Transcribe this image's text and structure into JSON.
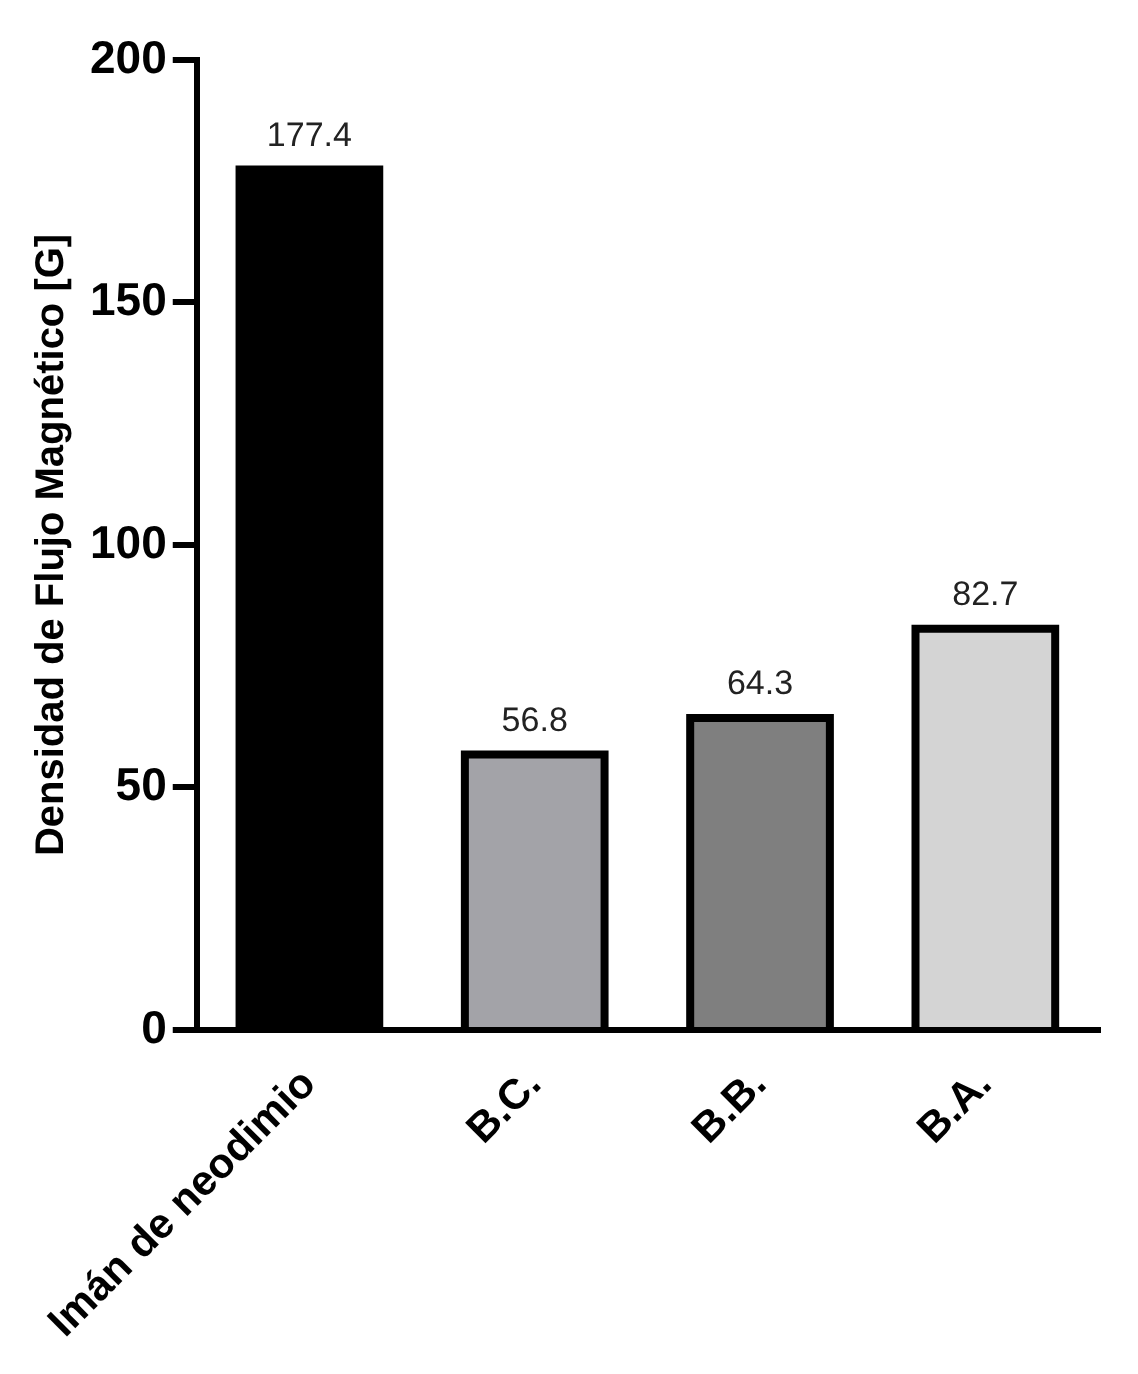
{
  "chart_data": {
    "type": "bar",
    "ylabel": "Densidad de Flujo Magnético [G]",
    "categories": [
      "Imán de neodimio",
      "B.C.",
      "B.B.",
      "B.A."
    ],
    "values": [
      177.4,
      56.8,
      64.3,
      82.7
    ],
    "colors": [
      "#000000",
      "#a3a3a8",
      "#7f7f7f",
      "#d4d4d4"
    ],
    "ylim": [
      0,
      200
    ],
    "yticks": [
      0,
      50,
      100,
      150,
      200
    ],
    "grid": false,
    "legend": false,
    "data_labels": true
  }
}
